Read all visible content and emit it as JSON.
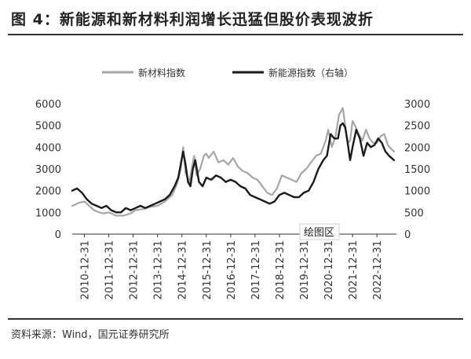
{
  "figure": {
    "title": "图 4：新能源和新材料利润增长迅猛但股价表现波折",
    "source": "资料来源：Wind，国元证券研究所",
    "tooltip_label": "绘图区"
  },
  "colors": {
    "new_materials": "#a6a6a6",
    "new_energy": "#1a1a1a",
    "text": "#333333"
  },
  "chart_data": {
    "type": "line",
    "x_tick_labels": [
      "2010-12-31",
      "2011-12-31",
      "2012-12-31",
      "2013-12-31",
      "2014-12-31",
      "2015-12-31",
      "2016-12-31",
      "2017-12-31",
      "2018-12-31",
      "2019-12-31",
      "2020-12-31",
      "2021-12-31",
      "2022-12-31"
    ],
    "xlim": [
      2010.5,
      2023.8
    ],
    "y_left": {
      "lim": [
        0,
        6000
      ],
      "ticks": [
        "0",
        "1000",
        "2000",
        "3000",
        "4000",
        "5000",
        "6000"
      ]
    },
    "y_right": {
      "lim": [
        0,
        3000
      ],
      "ticks": [
        "0",
        "500",
        "1000",
        "1500",
        "2000",
        "2500",
        "3000"
      ]
    },
    "grid": false,
    "legend_position": "top",
    "series": [
      {
        "name": "新材料指数",
        "axis": "left",
        "x": [
          2010.5,
          2010.8,
          2011.0,
          2011.2,
          2011.4,
          2011.6,
          2011.8,
          2012.0,
          2012.3,
          2012.6,
          2012.9,
          2013.1,
          2013.4,
          2013.7,
          2014.0,
          2014.3,
          2014.6,
          2014.8,
          2014.95,
          2015.05,
          2015.15,
          2015.3,
          2015.4,
          2015.5,
          2015.6,
          2015.75,
          2015.9,
          2016.0,
          2016.1,
          2016.3,
          2016.5,
          2016.7,
          2016.9,
          2017.1,
          2017.3,
          2017.5,
          2017.7,
          2017.9,
          2018.1,
          2018.3,
          2018.5,
          2018.7,
          2018.9,
          2019.0,
          2019.1,
          2019.3,
          2019.5,
          2019.7,
          2019.9,
          2020.1,
          2020.3,
          2020.5,
          2020.7,
          2020.9,
          2021.0,
          2021.15,
          2021.3,
          2021.45,
          2021.6,
          2021.7,
          2021.8,
          2021.9,
          2022.0,
          2022.1,
          2022.25,
          2022.4,
          2022.55,
          2022.7,
          2022.85,
          2023.0,
          2023.15,
          2023.3,
          2023.45,
          2023.6,
          2023.7
        ],
        "values": [
          1300,
          1450,
          1500,
          1300,
          1100,
          1000,
          950,
          1000,
          850,
          850,
          950,
          1100,
          1150,
          1250,
          1300,
          1500,
          1800,
          2300,
          3000,
          4000,
          2800,
          2400,
          3000,
          3600,
          2700,
          3000,
          3600,
          3700,
          3500,
          3800,
          3300,
          3400,
          3200,
          3500,
          3100,
          2900,
          2800,
          2600,
          2500,
          2200,
          1900,
          1800,
          2100,
          2400,
          2700,
          2600,
          2500,
          2400,
          2800,
          3000,
          3300,
          3600,
          3700,
          4300,
          4800,
          4000,
          4500,
          5500,
          5800,
          5000,
          4200,
          4300,
          5200,
          5000,
          4600,
          4300,
          4800,
          4400,
          4200,
          4200,
          4500,
          4600,
          4100,
          3900,
          3800
        ]
      },
      {
        "name": "新能源指数（右轴）",
        "axis": "right",
        "x": [
          2010.5,
          2010.7,
          2010.9,
          2011.1,
          2011.3,
          2011.5,
          2011.7,
          2011.9,
          2012.1,
          2012.3,
          2012.5,
          2012.7,
          2012.9,
          2013.1,
          2013.3,
          2013.5,
          2013.7,
          2013.9,
          2014.1,
          2014.3,
          2014.5,
          2014.7,
          2014.85,
          2014.95,
          2015.05,
          2015.15,
          2015.25,
          2015.35,
          2015.45,
          2015.55,
          2015.7,
          2015.85,
          2016.0,
          2016.2,
          2016.4,
          2016.6,
          2016.8,
          2017.0,
          2017.2,
          2017.4,
          2017.6,
          2017.8,
          2018.0,
          2018.2,
          2018.4,
          2018.6,
          2018.8,
          2019.0,
          2019.2,
          2019.4,
          2019.6,
          2019.8,
          2020.0,
          2020.2,
          2020.4,
          2020.6,
          2020.8,
          2020.95,
          2021.1,
          2021.25,
          2021.4,
          2021.5,
          2021.6,
          2021.7,
          2021.8,
          2021.9,
          2022.0,
          2022.15,
          2022.3,
          2022.45,
          2022.6,
          2022.75,
          2022.9,
          2023.05,
          2023.2,
          2023.35,
          2023.5,
          2023.6,
          2023.7
        ],
        "values": [
          1000,
          1050,
          950,
          800,
          700,
          650,
          600,
          650,
          550,
          500,
          500,
          600,
          550,
          600,
          650,
          600,
          650,
          700,
          750,
          800,
          900,
          1100,
          1300,
          1600,
          1900,
          1600,
          1200,
          1100,
          1500,
          1700,
          1200,
          1100,
          1300,
          1250,
          1350,
          1300,
          1200,
          1250,
          1200,
          1100,
          1050,
          900,
          850,
          800,
          750,
          700,
          750,
          900,
          950,
          900,
          850,
          850,
          950,
          1000,
          1200,
          1500,
          1700,
          1800,
          2300,
          2200,
          2200,
          2500,
          2550,
          2450,
          2100,
          1700,
          2000,
          2400,
          2200,
          1800,
          2100,
          2000,
          2050,
          2200,
          2100,
          1900,
          1800,
          1750,
          1700
        ]
      }
    ]
  }
}
